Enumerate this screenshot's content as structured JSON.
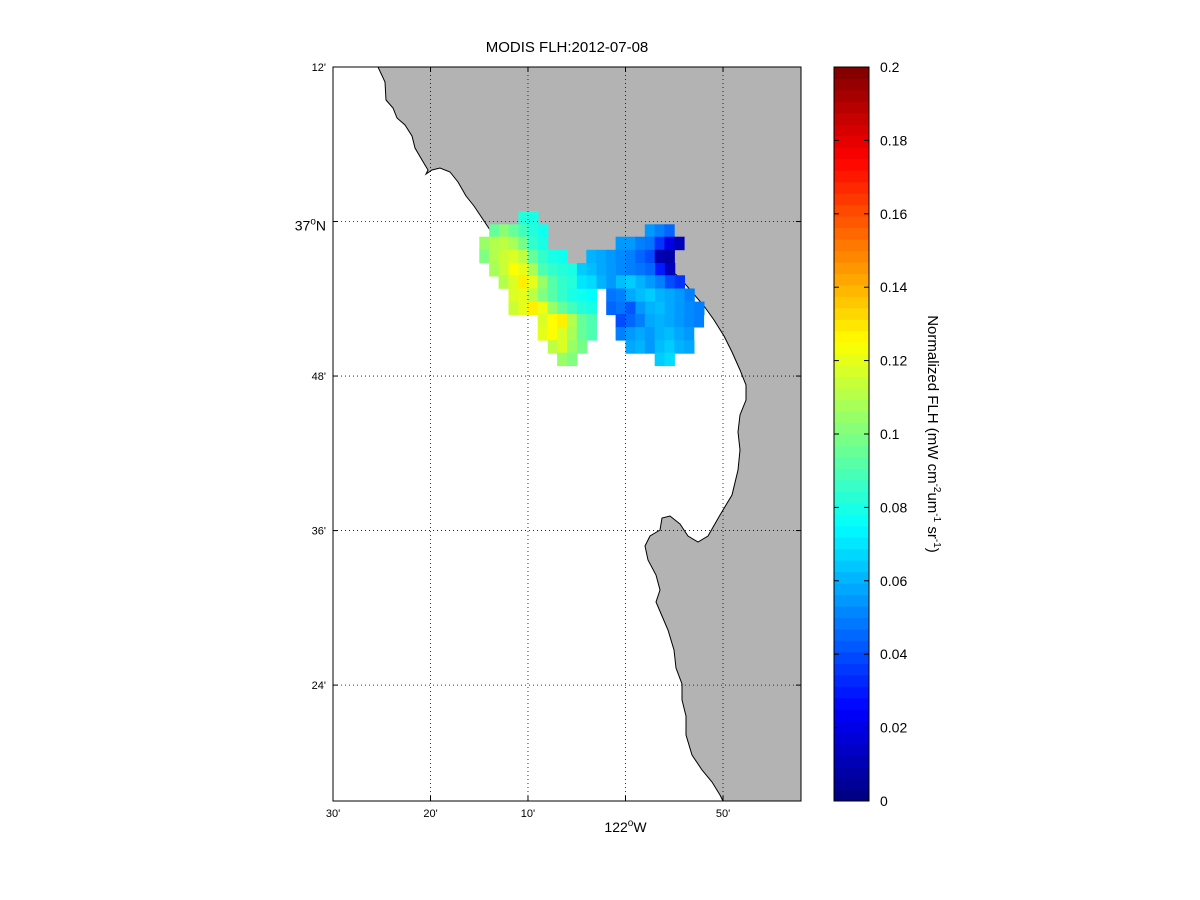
{
  "title": "MODIS FLH:2012-07-08",
  "colors": {
    "land": "#b3b3b3",
    "ocean": "#ffffff",
    "coast": "#000000",
    "frame": "#000000"
  },
  "map": {
    "lon_range": [
      -122.5,
      -121.7
    ],
    "lat_range": [
      36.25,
      37.2
    ],
    "lon_ticks": [
      {
        "value": -122.5,
        "label": "30'",
        "major": false
      },
      {
        "value": -122.3333,
        "label": "20'",
        "major": false
      },
      {
        "value": -122.1667,
        "label": "10'",
        "major": false
      },
      {
        "value": -122.0,
        "label": "122",
        "sup": "o",
        "suffix": "W",
        "major": true
      },
      {
        "value": -121.8333,
        "label": "50'",
        "major": false
      }
    ],
    "lat_ticks": [
      {
        "value": 37.2,
        "label": "12'",
        "major": false
      },
      {
        "value": 37.0,
        "label": "37",
        "sup": "o",
        "suffix": "N",
        "major": true
      },
      {
        "value": 36.8,
        "label": "48'",
        "major": false
      },
      {
        "value": 36.6,
        "label": "36'",
        "major": false
      },
      {
        "value": 36.4,
        "label": "24'",
        "major": false
      }
    ]
  },
  "colorbar": {
    "range": [
      0,
      0.2
    ],
    "ticks": [
      "0",
      "0.02",
      "0.04",
      "0.06",
      "0.08",
      "0.1",
      "0.12",
      "0.14",
      "0.16",
      "0.18",
      "0.2"
    ],
    "label_main": "Normalized FLH (mW cm",
    "label_exp1": "-2",
    "label_mid1": "um",
    "label_exp2": "-1",
    "label_mid2": " sr",
    "label_exp3": "-1",
    "label_end": ")",
    "colormap": "jet"
  },
  "chart_data": {
    "type": "heatmap",
    "title": "MODIS FLH:2012-07-08",
    "xlabel": "",
    "ylabel": "",
    "x_range_lon": [
      -122.5,
      -121.7
    ],
    "y_range_lat": [
      36.25,
      37.2
    ],
    "value_range": [
      0,
      0.2
    ],
    "colorbar_label": "Normalized FLH (mW cm-2 um-1 sr-1)",
    "cell_size_deg": 0.0167,
    "rows": [
      {
        "lat": 37.005,
        "lon_start": -122.183,
        "values": [
          0.082,
          0.08
        ]
      },
      {
        "lat": 36.988,
        "lon_start": -122.233,
        "values": [
          0.095,
          0.102,
          0.095,
          0.088,
          0.082,
          0.078
        ]
      },
      {
        "lat": 36.972,
        "lon_start": -122.25,
        "values": [
          0.105,
          0.11,
          0.112,
          0.108,
          0.098,
          0.085,
          0.08
        ]
      },
      {
        "lat": 36.955,
        "lon_start": -122.25,
        "values": [
          0.1,
          0.11,
          0.115,
          0.118,
          0.112,
          0.095,
          0.085,
          0.08,
          0.078
        ]
      },
      {
        "lat": 36.938,
        "lon_start": -122.233,
        "values": [
          0.108,
          0.115,
          0.125,
          0.12,
          0.108,
          0.09,
          0.085,
          0.082,
          0.08,
          0.078
        ]
      },
      {
        "lat": 36.922,
        "lon_start": -122.217,
        "values": [
          0.11,
          0.118,
          0.128,
          0.12,
          0.105,
          0.092,
          0.085,
          0.082,
          0.08,
          0.078,
          0.075
        ]
      },
      {
        "lat": 36.905,
        "lon_start": -122.2,
        "values": [
          0.118,
          0.12,
          0.112,
          0.1,
          0.092,
          0.085,
          0.08,
          0.078,
          0.075
        ]
      },
      {
        "lat": 36.888,
        "lon_start": -122.2,
        "values": [
          0.115,
          0.12,
          0.128,
          0.122,
          0.105,
          0.095,
          0.088,
          0.082,
          0.08
        ]
      },
      {
        "lat": 36.872,
        "lon_start": -122.15,
        "values": [
          0.118,
          0.125,
          0.128,
          0.11,
          0.095,
          0.09
        ]
      },
      {
        "lat": 36.855,
        "lon_start": -122.15,
        "values": [
          0.12,
          0.125,
          0.118,
          0.108,
          0.095,
          0.09
        ]
      },
      {
        "lat": 36.838,
        "lon_start": -122.133,
        "values": [
          0.112,
          0.118,
          0.105,
          0.098
        ]
      },
      {
        "lat": 36.822,
        "lon_start": -122.117,
        "values": [
          0.105,
          0.1
        ]
      },
      {
        "lat": 36.988,
        "lon_start": -121.967,
        "values": [
          0.055,
          0.05,
          0.045
        ]
      },
      {
        "lat": 36.972,
        "lon_start": -122.017,
        "values": [
          0.055,
          0.055,
          0.05,
          0.048,
          0.035,
          0.02,
          0.012
        ]
      },
      {
        "lat": 36.955,
        "lon_start": -122.067,
        "values": [
          0.06,
          0.058,
          0.055,
          0.052,
          0.05,
          0.045,
          0.04,
          0.01,
          0.008
        ]
      },
      {
        "lat": 36.938,
        "lon_start": -122.083,
        "values": [
          0.065,
          0.062,
          0.058,
          0.055,
          0.052,
          0.05,
          0.048,
          0.045,
          0.03,
          0.012
        ]
      },
      {
        "lat": 36.922,
        "lon_start": -122.083,
        "values": [
          0.07,
          0.068,
          0.06,
          0.055,
          0.062,
          0.065,
          0.06,
          0.055,
          0.05,
          0.04,
          0.035
        ]
      },
      {
        "lat": 36.905,
        "lon_start": -122.033,
        "values": [
          0.048,
          0.05,
          0.058,
          0.062,
          0.065,
          0.06,
          0.058,
          0.055,
          0.05
        ]
      },
      {
        "lat": 36.888,
        "lon_start": -122.033,
        "values": [
          0.045,
          0.048,
          0.042,
          0.055,
          0.06,
          0.062,
          0.058,
          0.055,
          0.052,
          0.05
        ]
      },
      {
        "lat": 36.872,
        "lon_start": -122.017,
        "values": [
          0.04,
          0.045,
          0.05,
          0.058,
          0.06,
          0.058,
          0.055,
          0.052,
          0.05
        ]
      },
      {
        "lat": 36.855,
        "lon_start": -122.017,
        "values": [
          0.05,
          0.055,
          0.058,
          0.055,
          0.06,
          0.062,
          0.058,
          0.055
        ]
      },
      {
        "lat": 36.838,
        "lon_start": -122.0,
        "values": [
          0.058,
          0.06,
          0.055,
          0.062,
          0.065,
          0.06,
          0.058
        ]
      },
      {
        "lat": 36.822,
        "lon_start": -121.95,
        "values": [
          0.065,
          0.068
        ]
      }
    ]
  }
}
